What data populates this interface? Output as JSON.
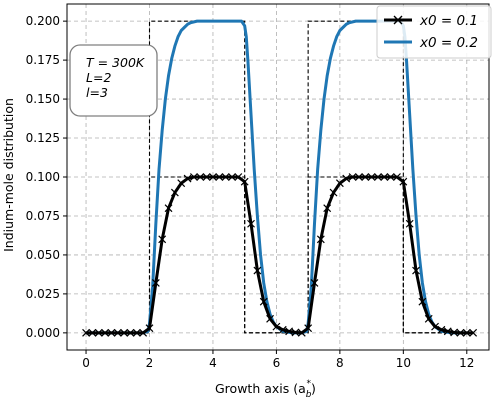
{
  "chart_data": {
    "type": "line",
    "xlabel": "Growth axis (a",
    "xlabel_sub": "b",
    "xlabel_sup": "*",
    "xlabel_close": ")",
    "ylabel": "Indium-mole distribution",
    "xlim": [
      -0.6,
      12.7
    ],
    "ylim": [
      -0.011,
      0.211
    ],
    "xticks": [
      0,
      2,
      4,
      6,
      8,
      10,
      12
    ],
    "yticks": [
      0.0,
      0.025,
      0.05,
      0.075,
      0.1,
      0.125,
      0.15,
      0.175,
      0.2
    ],
    "ytick_labels": [
      "0.000",
      "0.025",
      "0.050",
      "0.075",
      "0.100",
      "0.125",
      "0.150",
      "0.175",
      "0.200"
    ],
    "grid": true,
    "legend_position": "top-right",
    "legend": [
      {
        "label": "x0 = 0.1",
        "color": "#000000",
        "marker": "x"
      },
      {
        "label": "x0 = 0.2",
        "color": "#1f77b4",
        "marker": "none"
      }
    ],
    "annotation": {
      "lines": [
        "T = 300K",
        "L=2",
        "l=3"
      ]
    },
    "series": [
      {
        "name": "x0 = 0.1",
        "color": "#000000",
        "marker": "x",
        "x": [
          0,
          0.2,
          0.4,
          0.6,
          0.8,
          1.0,
          1.2,
          1.4,
          1.6,
          1.8,
          2.0,
          2.2,
          2.4,
          2.6,
          2.8,
          3.0,
          3.2,
          3.4,
          3.6,
          3.8,
          4.0,
          4.2,
          4.4,
          4.6,
          4.8,
          5.0,
          5.2,
          5.4,
          5.6,
          5.8,
          6.0,
          6.2,
          6.4,
          6.6,
          6.8,
          7.0,
          7.2,
          7.4,
          7.6,
          7.8,
          8.0,
          8.2,
          8.4,
          8.6,
          8.8,
          9.0,
          9.2,
          9.4,
          9.6,
          9.8,
          10.0,
          10.2,
          10.4,
          10.6,
          10.8,
          11.0,
          11.2,
          11.4,
          11.6,
          11.8,
          12.0,
          12.2
        ],
        "y": [
          0,
          0,
          0,
          0,
          0,
          0,
          0,
          0,
          0,
          0,
          0.003,
          0.032,
          0.06,
          0.08,
          0.09,
          0.096,
          0.099,
          0.1,
          0.1,
          0.1,
          0.1,
          0.1,
          0.1,
          0.1,
          0.1,
          0.097,
          0.07,
          0.04,
          0.02,
          0.009,
          0.004,
          0.002,
          0.001,
          0.0003,
          0,
          0.003,
          0.032,
          0.06,
          0.08,
          0.09,
          0.096,
          0.099,
          0.1,
          0.1,
          0.1,
          0.1,
          0.1,
          0.1,
          0.1,
          0.1,
          0.097,
          0.07,
          0.04,
          0.02,
          0.009,
          0.004,
          0.002,
          0.001,
          0.0003,
          0,
          0,
          0
        ]
      },
      {
        "name": "x0 = 0.2",
        "color": "#1f77b4",
        "marker": "none",
        "x": [
          0,
          0.5,
          1.0,
          1.5,
          1.8,
          1.95,
          2.0,
          2.1,
          2.2,
          2.3,
          2.4,
          2.5,
          2.6,
          2.7,
          2.8,
          2.9,
          3.0,
          3.1,
          3.2,
          3.3,
          3.5,
          3.7,
          4.0,
          4.5,
          4.9,
          5.0,
          5.05,
          5.1,
          5.2,
          5.3,
          5.4,
          5.5,
          5.6,
          5.7,
          5.8,
          5.9,
          6.0,
          6.2,
          6.5,
          6.8,
          6.95,
          7.0,
          7.1,
          7.2,
          7.3,
          7.4,
          7.5,
          7.6,
          7.7,
          7.8,
          7.9,
          8.0,
          8.1,
          8.2,
          8.3,
          8.5,
          8.7,
          9.0,
          9.5,
          9.9,
          10.0,
          10.05,
          10.1,
          10.2,
          10.3,
          10.4,
          10.5,
          10.6,
          10.7,
          10.8,
          10.9,
          11.0,
          11.2,
          11.5,
          12.0
        ],
        "y": [
          0,
          0,
          0,
          0,
          0,
          0.001,
          0.006,
          0.03,
          0.07,
          0.105,
          0.13,
          0.15,
          0.165,
          0.176,
          0.184,
          0.19,
          0.194,
          0.196,
          0.198,
          0.199,
          0.2,
          0.2,
          0.2,
          0.2,
          0.2,
          0.197,
          0.19,
          0.175,
          0.14,
          0.105,
          0.075,
          0.05,
          0.032,
          0.02,
          0.012,
          0.007,
          0.004,
          0.001,
          0,
          0,
          0.001,
          0.006,
          0.03,
          0.07,
          0.105,
          0.13,
          0.15,
          0.165,
          0.176,
          0.184,
          0.19,
          0.194,
          0.196,
          0.198,
          0.199,
          0.2,
          0.2,
          0.2,
          0.2,
          0.2,
          0.197,
          0.19,
          0.175,
          0.14,
          0.105,
          0.075,
          0.05,
          0.032,
          0.02,
          0.012,
          0.007,
          0.004,
          0.001,
          0,
          0
        ]
      }
    ],
    "reference_profiles": [
      {
        "color": "#000000",
        "style": "dashed",
        "x": [
          0,
          2,
          2,
          5,
          5,
          7,
          7,
          10,
          10,
          12
        ],
        "y": [
          0,
          0,
          0.1,
          0.1,
          0,
          0,
          0.1,
          0.1,
          0,
          0
        ]
      },
      {
        "color": "#000000",
        "style": "dashed",
        "x": [
          0,
          2,
          2,
          5,
          5,
          7,
          7,
          10,
          10,
          12
        ],
        "y": [
          0,
          0,
          0.2,
          0.2,
          0,
          0,
          0.2,
          0.2,
          0,
          0
        ]
      }
    ]
  }
}
